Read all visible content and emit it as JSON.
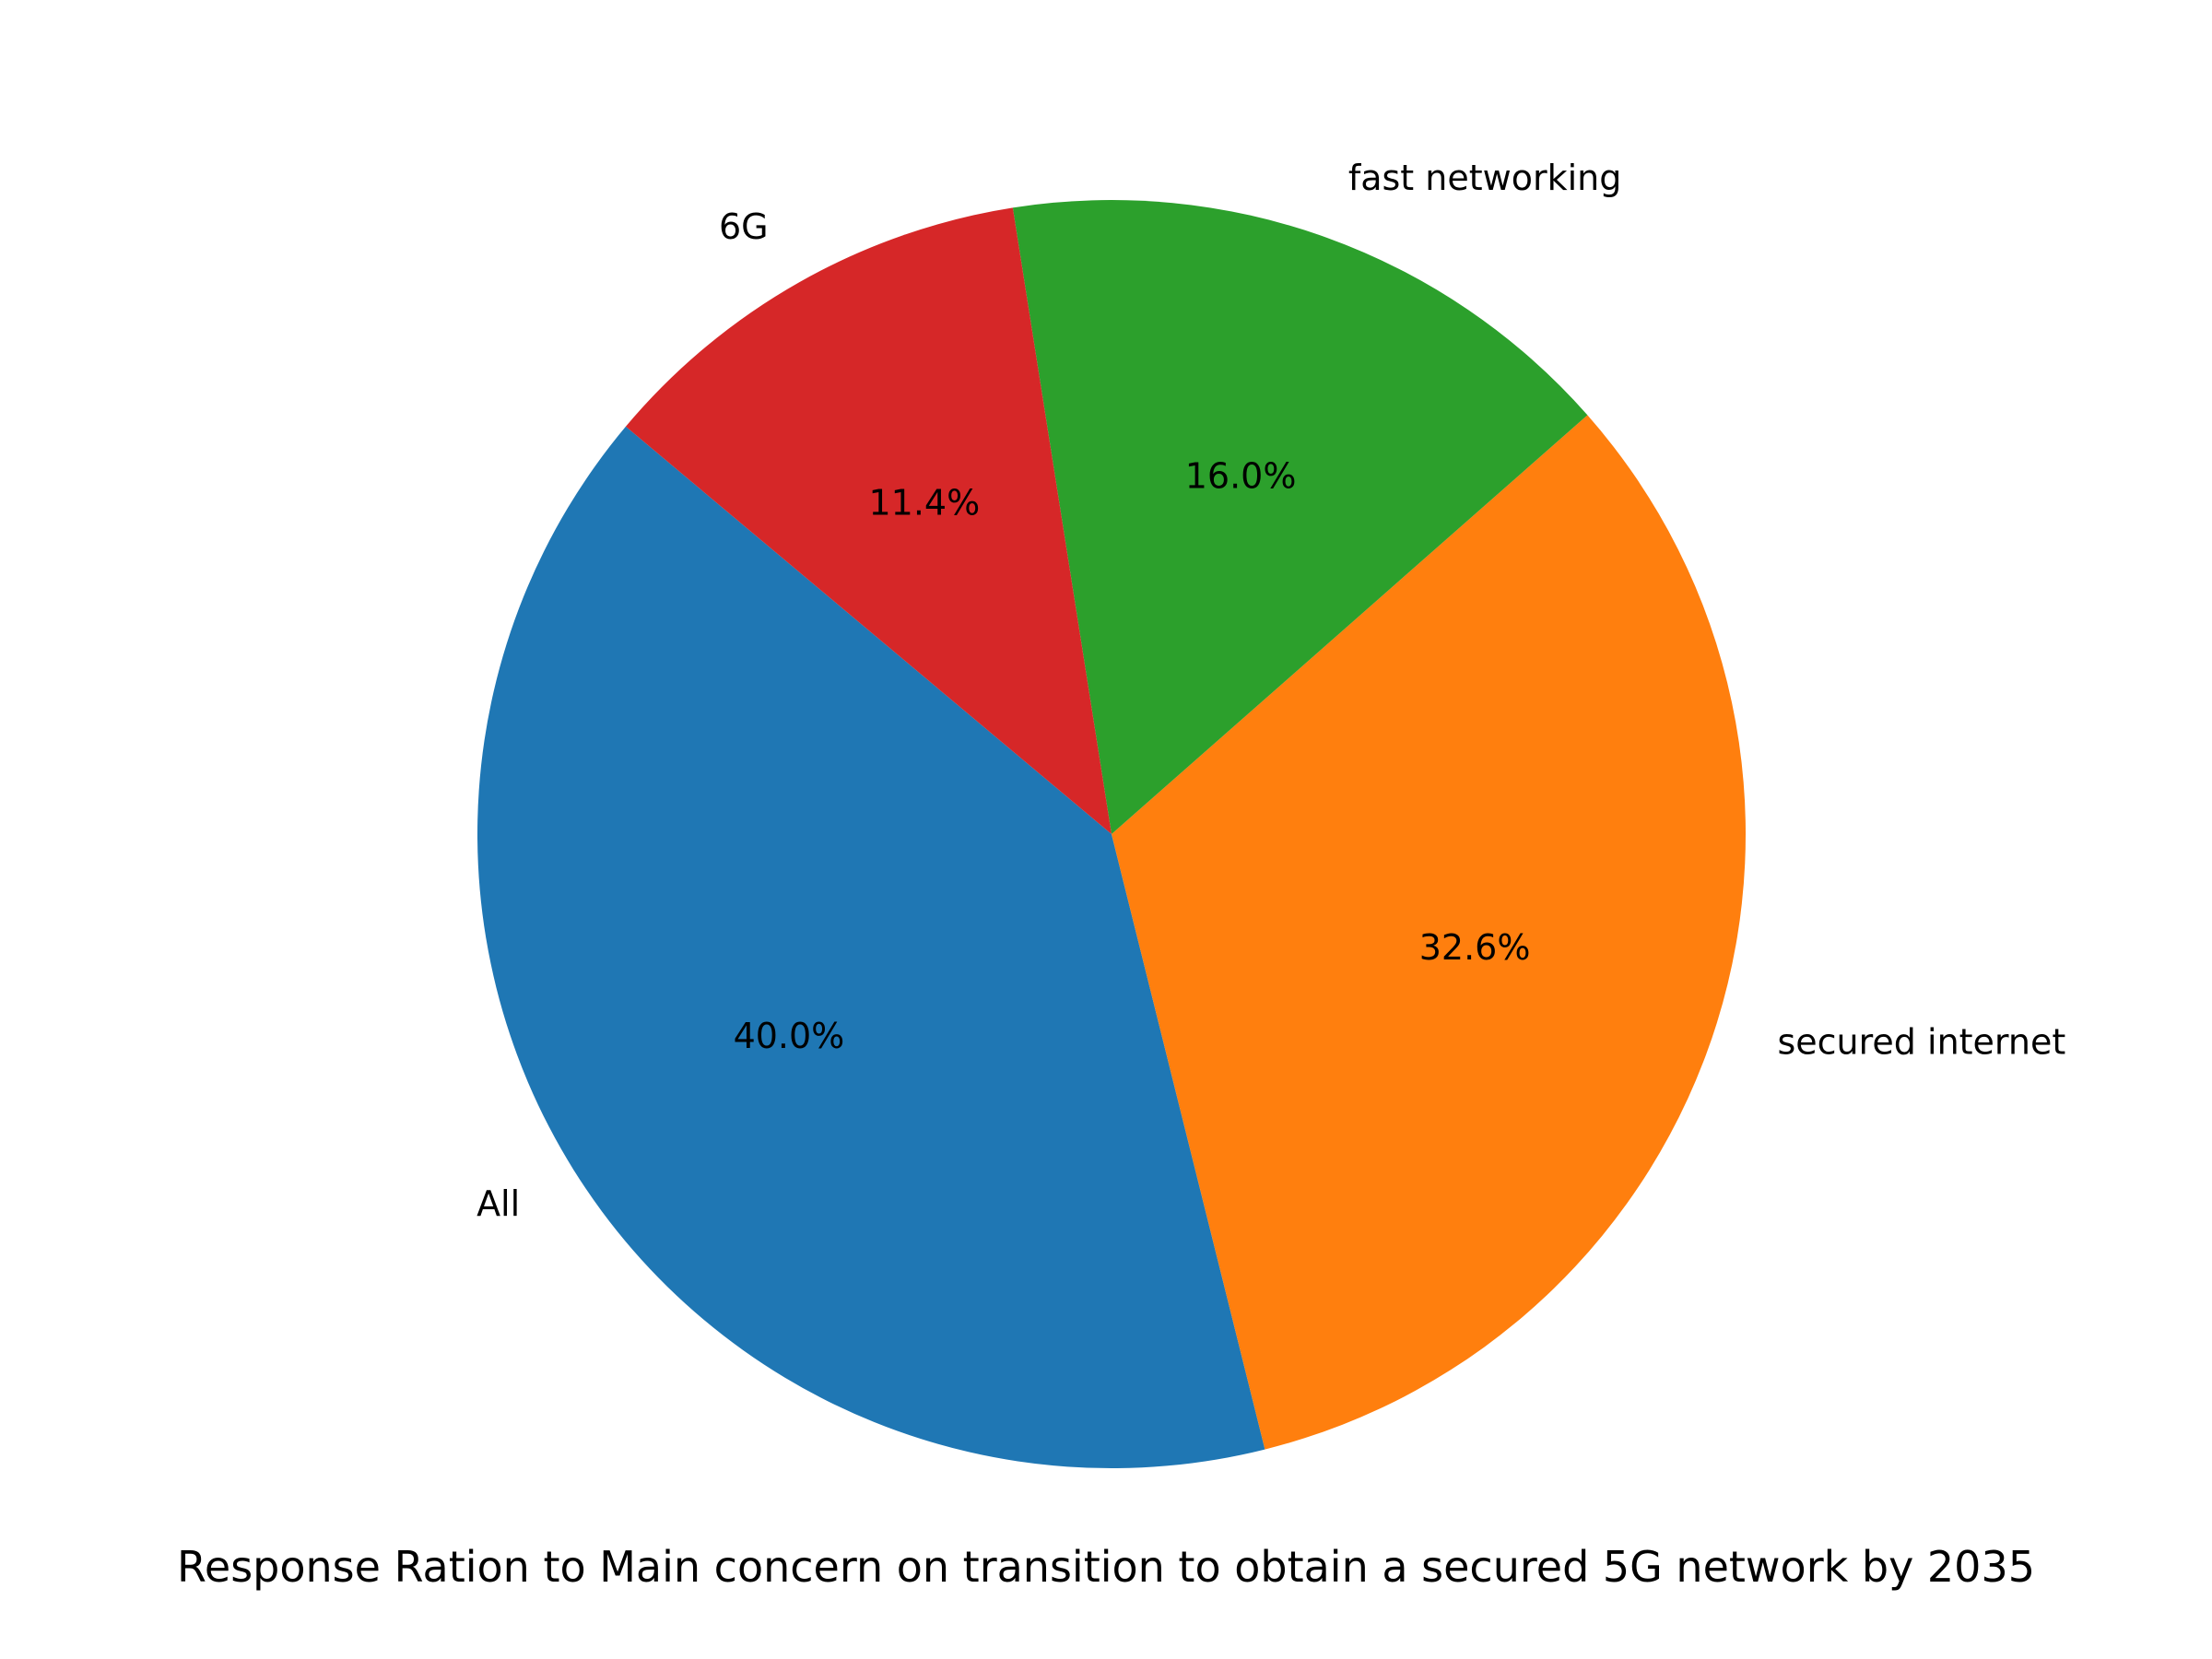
{
  "chart_data": {
    "type": "pie",
    "title": "Response Ration to Main concern on transition to obtain a secured 5G network by 2035",
    "categories": [
      "All",
      "secured internet",
      "fast networking",
      "6G"
    ],
    "values": [
      40.0,
      32.6,
      16.0,
      11.4
    ],
    "value_labels": [
      "40.0%",
      "32.6%",
      "16.0%",
      "11.4%"
    ],
    "colors": [
      "#1f77b4",
      "#ff7f0e",
      "#2ca02c",
      "#d62728"
    ],
    "start_angle_deg": 140,
    "direction": "counterclockwise",
    "legend": "none"
  }
}
